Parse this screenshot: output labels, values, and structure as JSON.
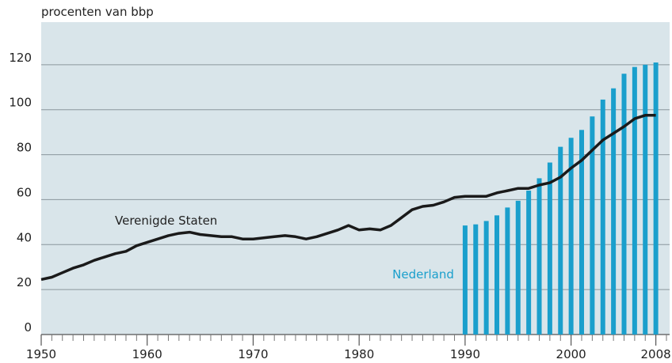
{
  "chart_data": {
    "type": "combo",
    "y_axis_label": "procenten van bbp",
    "xlim": [
      1950,
      2009.3
    ],
    "ylim": [
      0,
      140
    ],
    "yticks": [
      0,
      20,
      40,
      60,
      80,
      100,
      120
    ],
    "xticks": [
      1950,
      1960,
      1970,
      1980,
      1990,
      2000,
      2008
    ],
    "xminorticks": [
      1951,
      1952,
      1953,
      1954,
      1955,
      1956,
      1957,
      1958,
      1959,
      1961,
      1962,
      1963,
      1964,
      1965,
      1966,
      1967,
      1968,
      1969,
      1971,
      1972,
      1973,
      1974,
      1975,
      1976,
      1977,
      1978,
      1979,
      1981,
      1982,
      1983,
      1984,
      1985,
      1986,
      1987,
      1988,
      1989,
      1991,
      1992,
      1993,
      1994,
      1995,
      1996,
      1997,
      1998,
      1999,
      2001,
      2002,
      2003,
      2004,
      2005,
      2006,
      2007,
      2009
    ],
    "grid": true,
    "series": [
      {
        "name": "Nederland",
        "type": "bar",
        "color": "#1a9fcc",
        "x": [
          1990,
          1991,
          1992,
          1993,
          1994,
          1995,
          1996,
          1997,
          1998,
          1999,
          2000,
          2001,
          2002,
          2003,
          2004,
          2005,
          2006,
          2007,
          2008
        ],
        "values": [
          48.5,
          49,
          50.5,
          53,
          56.5,
          59.5,
          64,
          69.5,
          76.5,
          83.5,
          87.5,
          91,
          97,
          104.5,
          109.5,
          116,
          119,
          120,
          121
        ]
      },
      {
        "name": "Verenigde Staten",
        "type": "line",
        "color": "#1a1a1a",
        "x": [
          1950,
          1951,
          1952,
          1953,
          1954,
          1955,
          1956,
          1957,
          1958,
          1959,
          1960,
          1961,
          1962,
          1963,
          1964,
          1965,
          1966,
          1967,
          1968,
          1969,
          1970,
          1971,
          1972,
          1973,
          1974,
          1975,
          1976,
          1977,
          1978,
          1979,
          1980,
          1981,
          1982,
          1983,
          1984,
          1985,
          1986,
          1987,
          1988,
          1989,
          1990,
          1991,
          1992,
          1993,
          1994,
          1995,
          1996,
          1997,
          1998,
          1999,
          2000,
          2001,
          2002,
          2003,
          2004,
          2005,
          2006,
          2007,
          2008
        ],
        "values": [
          24.5,
          25.5,
          27.5,
          29.5,
          31,
          33,
          34.5,
          36,
          37,
          39.5,
          41,
          42.5,
          44,
          45,
          45.5,
          44.5,
          44,
          43.5,
          43.5,
          42.5,
          42.5,
          43,
          43.5,
          44,
          43.5,
          42.5,
          43.5,
          45,
          46.5,
          48.5,
          46.5,
          47,
          46.5,
          48.5,
          52,
          55.5,
          57,
          57.5,
          59,
          61,
          61.5,
          61.5,
          61.5,
          63,
          64,
          65,
          65,
          66.5,
          67.5,
          70,
          74,
          77.5,
          82,
          86.5,
          89.5,
          92.5,
          96,
          97.5,
          97.5
        ]
      }
    ]
  }
}
